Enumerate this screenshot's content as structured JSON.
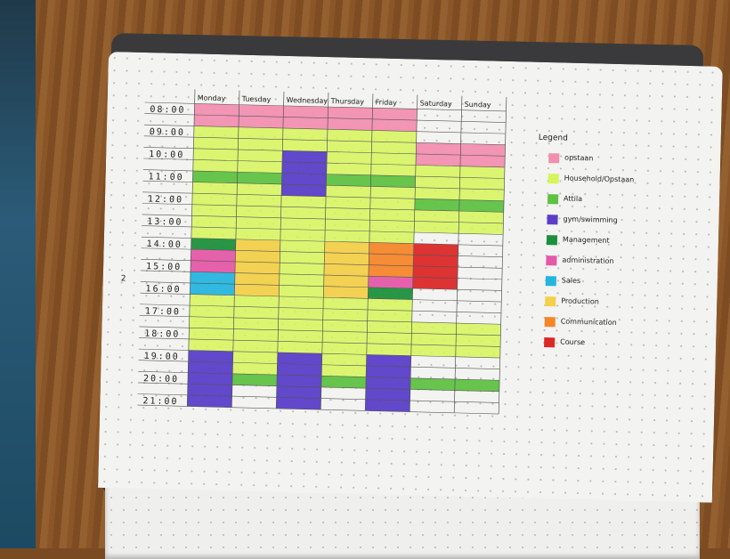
{
  "timetable": {
    "days": [
      "Monday",
      "Tuesday",
      "Wednesday",
      "Thursday",
      "Friday",
      "Saturday",
      "Sunday"
    ],
    "hours": [
      "08:00",
      "09:00",
      "10:00",
      "11:00",
      "12:00",
      "13:00",
      "14:00",
      "15:00",
      "16:00",
      "17:00",
      "18:00",
      "19:00",
      "20:00",
      "21:00"
    ],
    "blocks": [
      {
        "day": 0,
        "start": 8,
        "end": 9,
        "category": "opstaan"
      },
      {
        "day": 1,
        "start": 8,
        "end": 9,
        "category": "opstaan"
      },
      {
        "day": 2,
        "start": 8,
        "end": 9,
        "category": "opstaan"
      },
      {
        "day": 3,
        "start": 8,
        "end": 9,
        "category": "opstaan"
      },
      {
        "day": 4,
        "start": 8,
        "end": 9,
        "category": "opstaan"
      },
      {
        "day": 5,
        "start": 9.5,
        "end": 10.5,
        "category": "opstaan"
      },
      {
        "day": 6,
        "start": 9.5,
        "end": 10.5,
        "category": "opstaan"
      },
      {
        "day": 0,
        "start": 9,
        "end": 11,
        "category": "household"
      },
      {
        "day": 1,
        "start": 9,
        "end": 11,
        "category": "household"
      },
      {
        "day": 2,
        "start": 9,
        "end": 10,
        "category": "household"
      },
      {
        "day": 3,
        "start": 9,
        "end": 11,
        "category": "household"
      },
      {
        "day": 4,
        "start": 9,
        "end": 11,
        "category": "household"
      },
      {
        "day": 0,
        "start": 11,
        "end": 11.5,
        "category": "atila"
      },
      {
        "day": 1,
        "start": 11,
        "end": 11.5,
        "category": "atila"
      },
      {
        "day": 3,
        "start": 11,
        "end": 11.5,
        "category": "atila"
      },
      {
        "day": 4,
        "start": 11,
        "end": 11.5,
        "category": "atila"
      },
      {
        "day": 2,
        "start": 10,
        "end": 12,
        "category": "gym"
      },
      {
        "day": 0,
        "start": 11.5,
        "end": 14,
        "category": "household"
      },
      {
        "day": 1,
        "start": 11.5,
        "end": 14,
        "category": "household"
      },
      {
        "day": 2,
        "start": 12,
        "end": 19,
        "category": "household"
      },
      {
        "day": 3,
        "start": 11.5,
        "end": 14,
        "category": "household"
      },
      {
        "day": 4,
        "start": 11.5,
        "end": 14,
        "category": "household"
      },
      {
        "day": 5,
        "start": 10.5,
        "end": 12,
        "category": "household"
      },
      {
        "day": 6,
        "start": 10.5,
        "end": 12,
        "category": "household"
      },
      {
        "day": 5,
        "start": 12,
        "end": 12.5,
        "category": "atila"
      },
      {
        "day": 6,
        "start": 12,
        "end": 12.5,
        "category": "atila"
      },
      {
        "day": 5,
        "start": 12.5,
        "end": 13.5,
        "category": "household"
      },
      {
        "day": 6,
        "start": 12.5,
        "end": 13.5,
        "category": "household"
      },
      {
        "day": 0,
        "start": 14,
        "end": 14.5,
        "category": "management"
      },
      {
        "day": 0,
        "start": 14.5,
        "end": 15.5,
        "category": "administration"
      },
      {
        "day": 0,
        "start": 15.5,
        "end": 16.5,
        "category": "sales"
      },
      {
        "day": 1,
        "start": 14,
        "end": 16.5,
        "category": "production"
      },
      {
        "day": 3,
        "start": 14,
        "end": 16.5,
        "category": "production"
      },
      {
        "day": 4,
        "start": 14,
        "end": 15.5,
        "category": "communication"
      },
      {
        "day": 4,
        "start": 15.5,
        "end": 16,
        "category": "administration"
      },
      {
        "day": 4,
        "start": 16,
        "end": 16.5,
        "category": "management"
      },
      {
        "day": 5,
        "start": 14,
        "end": 16,
        "category": "course"
      },
      {
        "day": 0,
        "start": 16.5,
        "end": 19,
        "category": "household"
      },
      {
        "day": 1,
        "start": 16.5,
        "end": 20,
        "category": "household"
      },
      {
        "day": 3,
        "start": 16.5,
        "end": 20,
        "category": "household"
      },
      {
        "day": 4,
        "start": 16.5,
        "end": 19,
        "category": "household"
      },
      {
        "day": 5,
        "start": 17.5,
        "end": 19,
        "category": "household"
      },
      {
        "day": 6,
        "start": 17.5,
        "end": 19,
        "category": "household"
      },
      {
        "day": 0,
        "start": 19,
        "end": 21.5,
        "category": "gym"
      },
      {
        "day": 2,
        "start": 19,
        "end": 21.5,
        "category": "gym"
      },
      {
        "day": 4,
        "start": 19,
        "end": 21.5,
        "category": "gym"
      },
      {
        "day": 1,
        "start": 20,
        "end": 20.5,
        "category": "atila"
      },
      {
        "day": 3,
        "start": 20,
        "end": 20.5,
        "category": "atila"
      },
      {
        "day": 5,
        "start": 20,
        "end": 20.5,
        "category": "atila"
      },
      {
        "day": 6,
        "start": 20,
        "end": 20.5,
        "category": "atila"
      }
    ]
  },
  "legend": {
    "title": "Legend",
    "items": [
      {
        "key": "opstaan",
        "label": "opstaan",
        "color": "#f28fb0"
      },
      {
        "key": "household",
        "label": "Household/Opstaan",
        "color": "#d6f55a"
      },
      {
        "key": "atila",
        "label": "Attila",
        "color": "#5fc142"
      },
      {
        "key": "gym",
        "label": "gym/swimming",
        "color": "#5a3ec8"
      },
      {
        "key": "management",
        "label": "Management",
        "color": "#1e8f3c"
      },
      {
        "key": "administration",
        "label": "administration",
        "color": "#e559a8"
      },
      {
        "key": "sales",
        "label": "Sales",
        "color": "#26b5e0"
      },
      {
        "key": "production",
        "label": "Production",
        "color": "#f2d04a"
      },
      {
        "key": "communication",
        "label": "Communication",
        "color": "#f5862a"
      },
      {
        "key": "course",
        "label": "Course",
        "color": "#dc2828"
      }
    ]
  },
  "page_number": "2"
}
